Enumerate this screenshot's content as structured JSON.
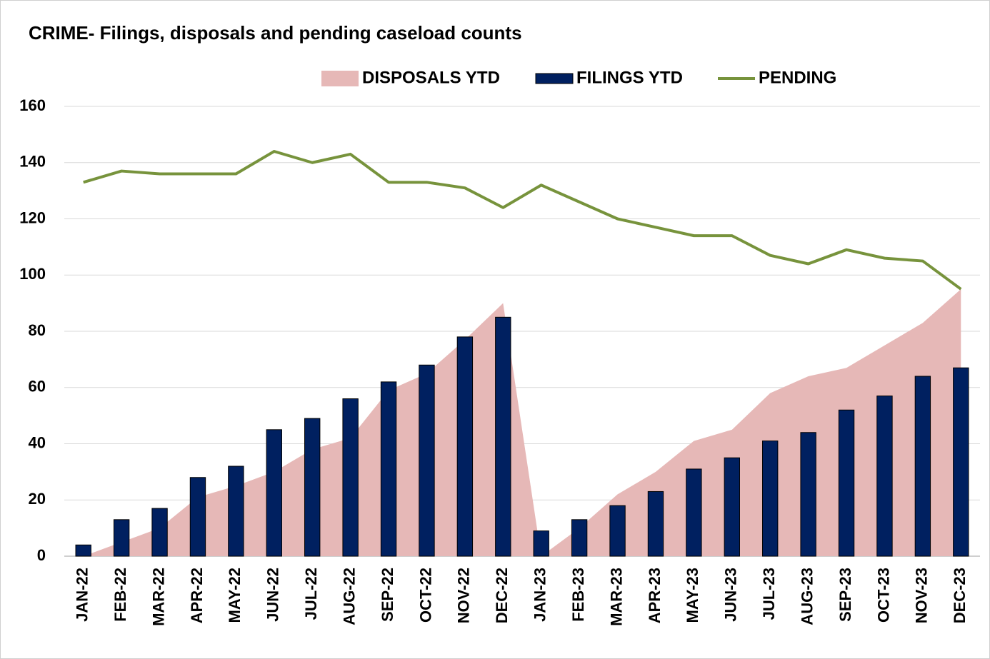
{
  "chart_data": {
    "type": "combo",
    "title": "CRIME- Filings, disposals and pending caseload counts",
    "categories": [
      "JAN-22",
      "FEB-22",
      "MAR-22",
      "APR-22",
      "MAY-22",
      "JUN-22",
      "JUL-22",
      "AUG-22",
      "SEP-22",
      "OCT-22",
      "NOV-22",
      "DEC-22",
      "JAN-23",
      "FEB-23",
      "MAR-23",
      "APR-23",
      "MAY-23",
      "JUN-23",
      "JUL-23",
      "AUG-23",
      "SEP-23",
      "OCT-23",
      "NOV-23",
      "DEC-23"
    ],
    "series": [
      {
        "name": "DISPOSALS YTD",
        "type": "area",
        "color": "#e6b8b7",
        "values": [
          0,
          5,
          10,
          21,
          25,
          30,
          38,
          42,
          59,
          65,
          77,
          90,
          0,
          10,
          22,
          30,
          41,
          45,
          58,
          64,
          67,
          75,
          83,
          95
        ]
      },
      {
        "name": "FILINGS YTD",
        "type": "bar",
        "color": "#002060",
        "values": [
          4,
          13,
          17,
          28,
          32,
          45,
          49,
          56,
          62,
          68,
          78,
          85,
          9,
          13,
          18,
          23,
          31,
          35,
          41,
          44,
          52,
          57,
          64,
          67
        ]
      },
      {
        "name": "PENDING",
        "type": "line",
        "color": "#77933c",
        "values": [
          133,
          137,
          136,
          136,
          136,
          144,
          140,
          143,
          133,
          133,
          131,
          124,
          132,
          126,
          120,
          117,
          114,
          114,
          107,
          104,
          109,
          106,
          105,
          95
        ]
      }
    ],
    "ylim": [
      0,
      160
    ],
    "yticks": [
      0,
      20,
      40,
      60,
      80,
      100,
      120,
      140,
      160
    ],
    "grid": true,
    "legend": "top"
  }
}
